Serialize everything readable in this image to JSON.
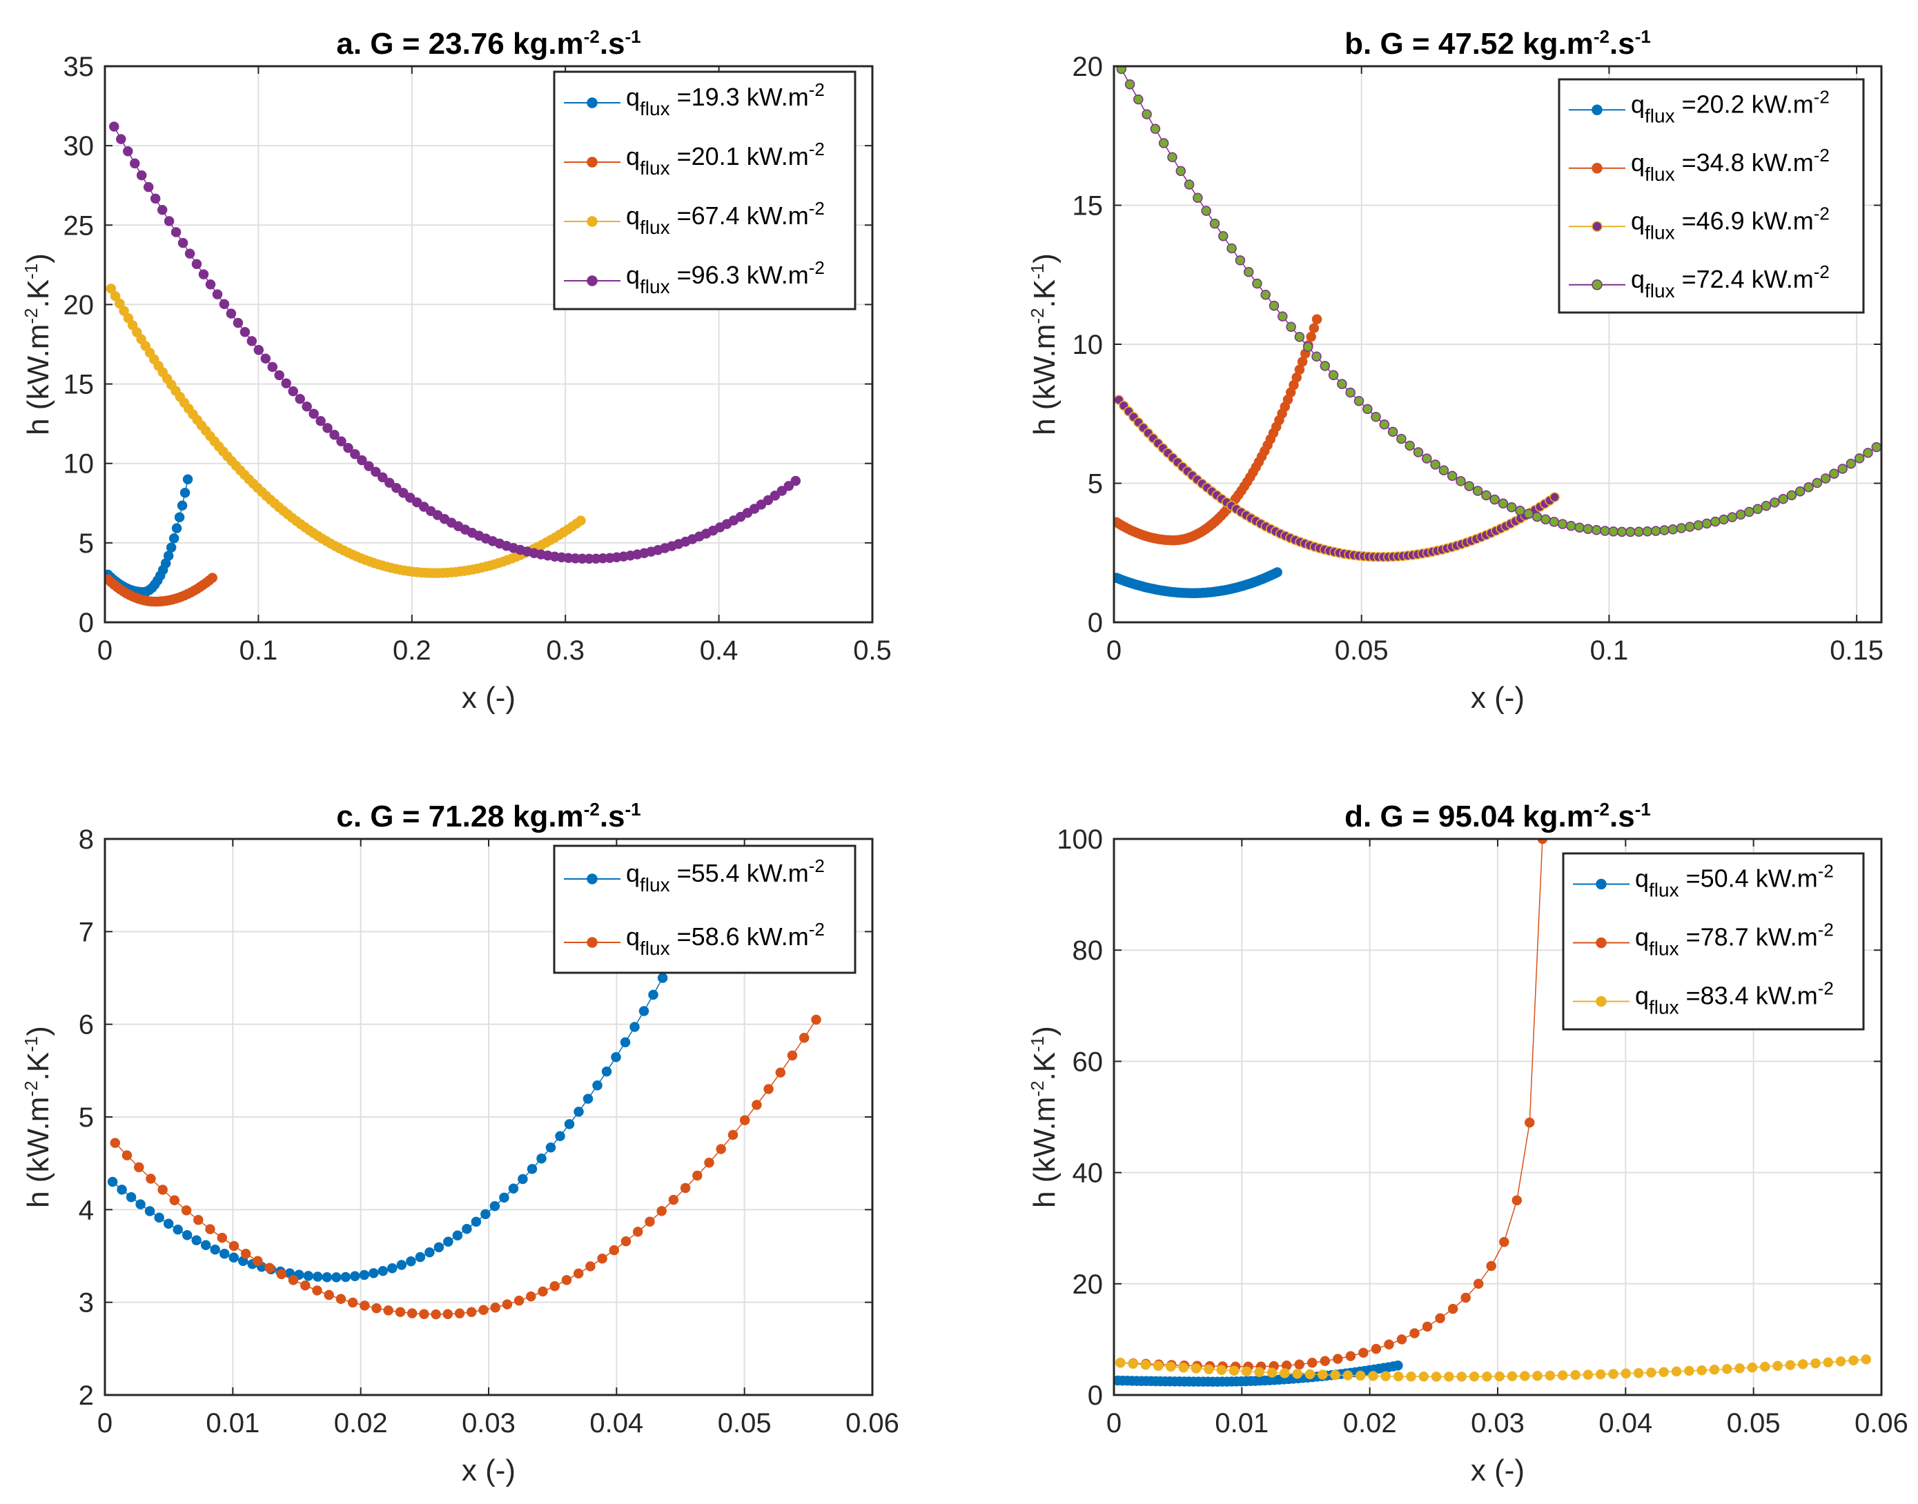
{
  "chart_data": [
    {
      "type": "line",
      "title": "a. G = 23.76 kg.m",
      "title_sup1": "-2",
      "title_mid": ".s",
      "title_sup2": "-1",
      "xlabel": "x (-)",
      "ylabel": "h (kW.m",
      "ylabel_sup1": "-2",
      "ylabel_mid": ".K",
      "ylabel_sup2": "-1",
      "ylabel_end": ")",
      "xlim": [
        0,
        0.5
      ],
      "ylim": [
        0,
        35
      ],
      "xticks": [
        0,
        0.1,
        0.2,
        0.3,
        0.4,
        0.5
      ],
      "xtick_labels": [
        "0",
        "0.1",
        "0.2",
        "0.3",
        "0.4",
        "0.5"
      ],
      "yticks": [
        0,
        5,
        10,
        15,
        20,
        25,
        30,
        35
      ],
      "ytick_labels": [
        "0",
        "5",
        "10",
        "15",
        "20",
        "25",
        "30",
        "35"
      ],
      "grid": true,
      "legend_position": "top-right",
      "series": [
        {
          "name": "q_flux =19.3 kW.m-2",
          "label_main": "q",
          "label_sub": "flux",
          "label_val": " =19.3 kW.m",
          "label_sup": "-2",
          "color": "#0072BD",
          "marker_fill": "#0072BD",
          "x0": 0.002,
          "x1": 0.054,
          "n": 30,
          "y0": 3.0,
          "xmin": 0.025,
          "ymin": 1.9,
          "y1": 9.0
        },
        {
          "name": "q_flux =20.1 kW.m-2",
          "label_main": "q",
          "label_sub": "flux",
          "label_val": " =20.1 kW.m",
          "label_sup": "-2",
          "color": "#D95319",
          "marker_fill": "#D95319",
          "x0": 0.002,
          "x1": 0.07,
          "n": 35,
          "y0": 2.7,
          "xmin": 0.033,
          "ymin": 1.3,
          "y1": 2.8
        },
        {
          "name": "q_flux =67.4 kW.m-2",
          "label_main": "q",
          "label_sub": "flux",
          "label_val": " =67.4 kW.m",
          "label_sup": "-2",
          "color": "#EDB120",
          "marker_fill": "#EDB120",
          "x0": 0.004,
          "x1": 0.31,
          "n": 110,
          "y0": 21.0,
          "xmin": 0.215,
          "ymin": 3.1,
          "y1": 6.4
        },
        {
          "name": "q_flux =96.3 kW.m-2",
          "label_main": "q",
          "label_sub": "flux",
          "label_val": " =96.3 kW.m",
          "label_sup": "-2",
          "color": "#7E2F8E",
          "marker_fill": "#7E2F8E",
          "x0": 0.006,
          "x1": 0.45,
          "n": 100,
          "y0": 31.2,
          "xmin": 0.315,
          "ymin": 4.0,
          "y1": 8.9
        }
      ]
    },
    {
      "type": "line",
      "title": "b. G = 47.52 kg.m",
      "title_sup1": "-2",
      "title_mid": ".s",
      "title_sup2": "-1",
      "xlabel": "x (-)",
      "ylabel": "h (kW.m",
      "ylabel_sup1": "-2",
      "ylabel_mid": ".K",
      "ylabel_sup2": "-1",
      "ylabel_end": ")",
      "xlim": [
        0,
        0.155
      ],
      "ylim": [
        0,
        20
      ],
      "xticks": [
        0,
        0.05,
        0.1,
        0.15
      ],
      "xtick_labels": [
        "0",
        "0.05",
        "0.1",
        "0.15"
      ],
      "yticks": [
        0,
        5,
        10,
        15,
        20
      ],
      "ytick_labels": [
        "0",
        "5",
        "10",
        "15",
        "20"
      ],
      "grid": true,
      "legend_position": "top-right",
      "series": [
        {
          "name": "q_flux =20.2 kW.m-2",
          "label_main": "q",
          "label_sub": "flux",
          "label_val": " =20.2 kW.m",
          "label_sup": "-2",
          "color": "#0072BD",
          "marker_fill": "#0072BD",
          "x0": 0.0005,
          "x1": 0.033,
          "n": 70,
          "y0": 1.6,
          "xmin": 0.016,
          "ymin": 1.05,
          "y1": 1.8
        },
        {
          "name": "q_flux =34.8 kW.m-2",
          "label_main": "q",
          "label_sub": "flux",
          "label_val": " =34.8 kW.m",
          "label_sup": "-2",
          "color": "#D95319",
          "marker_fill": "#D95319",
          "x0": 0.0005,
          "x1": 0.041,
          "n": 70,
          "y0": 3.6,
          "xmin": 0.012,
          "ymin": 2.95,
          "y1": 10.9
        },
        {
          "name": "q_flux =46.9 kW.m-2",
          "label_main": "q",
          "label_sub": "flux",
          "label_val": " =46.9 kW.m",
          "label_sup": "-2",
          "color": "#EDB120",
          "marker_fill": "#7E2F8E",
          "x0": 0.001,
          "x1": 0.089,
          "n": 90,
          "y0": 8.0,
          "xmin": 0.054,
          "ymin": 2.35,
          "y1": 4.5
        },
        {
          "name": "q_flux =72.4 kW.m-2",
          "label_main": "q",
          "label_sub": "flux",
          "label_val": " =72.4 kW.m",
          "label_sup": "-2",
          "color": "#7E2F8E",
          "marker_fill": "#77AC30",
          "x0": 0.0015,
          "x1": 0.154,
          "n": 90,
          "y0": 19.9,
          "xmin": 0.104,
          "ymin": 3.25,
          "y1": 6.3
        }
      ]
    },
    {
      "type": "line",
      "title": "c. G = 71.28 kg.m",
      "title_sup1": "-2",
      "title_mid": ".s",
      "title_sup2": "-1",
      "xlabel": "x (-)",
      "ylabel": "h (kW.m",
      "ylabel_sup1": "-2",
      "ylabel_mid": ".K",
      "ylabel_sup2": "-1",
      "ylabel_end": ")",
      "xlim": [
        0,
        0.06
      ],
      "ylim": [
        2,
        8
      ],
      "xticks": [
        0,
        0.01,
        0.02,
        0.03,
        0.04,
        0.05,
        0.06
      ],
      "xtick_labels": [
        "0",
        "0.01",
        "0.02",
        "0.03",
        "0.04",
        "0.05",
        "0.06"
      ],
      "yticks": [
        2,
        3,
        4,
        5,
        6,
        7,
        8
      ],
      "ytick_labels": [
        "2",
        "3",
        "4",
        "5",
        "6",
        "7",
        "8"
      ],
      "grid": true,
      "legend_position": "top-right",
      "series": [
        {
          "name": "q_flux =55.4 kW.m-2",
          "label_main": "q",
          "label_sub": "flux",
          "label_val": " =55.4 kW.m",
          "label_sup": "-2",
          "color": "#0072BD",
          "marker_fill": "#0072BD",
          "x0": 0.0006,
          "x1": 0.0436,
          "n": 60,
          "y0": 4.3,
          "xmin": 0.018,
          "ymin": 3.27,
          "y1": 6.5
        },
        {
          "name": "q_flux =58.6 kW.m-2",
          "label_main": "q",
          "label_sub": "flux",
          "label_val": " =58.6 kW.m",
          "label_sup": "-2",
          "color": "#D95319",
          "marker_fill": "#D95319",
          "x0": 0.0008,
          "x1": 0.0556,
          "n": 60,
          "y0": 4.72,
          "xmin": 0.026,
          "ymin": 2.87,
          "y1": 6.05
        }
      ]
    },
    {
      "type": "line",
      "title": "d. G = 95.04 kg.m",
      "title_sup1": "-2",
      "title_mid": ".s",
      "title_sup2": "-1",
      "xlabel": "x (-)",
      "ylabel": "h (kW.m",
      "ylabel_sup1": "-2",
      "ylabel_mid": ".K",
      "ylabel_sup2": "-1",
      "ylabel_end": ")",
      "xlim": [
        0,
        0.06
      ],
      "ylim": [
        0,
        100
      ],
      "xticks": [
        0,
        0.01,
        0.02,
        0.03,
        0.04,
        0.05,
        0.06
      ],
      "xtick_labels": [
        "0",
        "0.01",
        "0.02",
        "0.03",
        "0.04",
        "0.05",
        "0.06"
      ],
      "yticks": [
        0,
        20,
        40,
        60,
        80,
        100
      ],
      "ytick_labels": [
        "0",
        "20",
        "40",
        "60",
        "80",
        "100"
      ],
      "grid": true,
      "legend_position": "top-right",
      "series": [
        {
          "name": "q_flux =50.4 kW.m-2",
          "label_main": "q",
          "label_sub": "flux",
          "label_val": " =50.4 kW.m",
          "label_sup": "-2",
          "color": "#0072BD",
          "marker_fill": "#0072BD",
          "x0": 0.0003,
          "x1": 0.0222,
          "n": 60,
          "y0": 2.6,
          "xmin": 0.008,
          "ymin": 2.4,
          "y1": 5.3
        },
        {
          "name": "q_flux =78.7 kW.m-2",
          "label_main": "q",
          "label_sub": "flux",
          "label_val": " =78.7 kW.m",
          "label_sup": "-2",
          "color": "#D95319",
          "marker_fill": "#D95319",
          "points": [
            [
              0.0005,
              5.8
            ],
            [
              0.0015,
              5.7
            ],
            [
              0.0025,
              5.6
            ],
            [
              0.0035,
              5.5
            ],
            [
              0.0045,
              5.4
            ],
            [
              0.0055,
              5.3
            ],
            [
              0.0065,
              5.25
            ],
            [
              0.0075,
              5.2
            ],
            [
              0.0085,
              5.15
            ],
            [
              0.0095,
              5.1
            ],
            [
              0.0105,
              5.1
            ],
            [
              0.0115,
              5.12
            ],
            [
              0.0125,
              5.2
            ],
            [
              0.0135,
              5.3
            ],
            [
              0.0145,
              5.5
            ],
            [
              0.0155,
              5.8
            ],
            [
              0.0165,
              6.1
            ],
            [
              0.0175,
              6.5
            ],
            [
              0.0185,
              7.0
            ],
            [
              0.0195,
              7.6
            ],
            [
              0.0205,
              8.3
            ],
            [
              0.0215,
              9.1
            ],
            [
              0.0225,
              10.0
            ],
            [
              0.0235,
              11.1
            ],
            [
              0.0245,
              12.3
            ],
            [
              0.0255,
              13.8
            ],
            [
              0.0265,
              15.5
            ],
            [
              0.0275,
              17.5
            ],
            [
              0.0285,
              20.0
            ],
            [
              0.0295,
              23.2
            ],
            [
              0.0305,
              27.5
            ],
            [
              0.0315,
              35.0
            ],
            [
              0.0325,
              49.0
            ],
            [
              0.0335,
              100.0
            ]
          ]
        },
        {
          "name": "q_flux =83.4 kW.m-2",
          "label_main": "q",
          "label_sub": "flux",
          "label_val": " =83.4 kW.m",
          "label_sup": "-2",
          "color": "#EDB120",
          "marker_fill": "#EDB120",
          "x0": 0.0005,
          "x1": 0.0588,
          "n": 60,
          "y0": 5.8,
          "xmin": 0.026,
          "ymin": 3.3,
          "y1": 6.4
        }
      ]
    }
  ]
}
